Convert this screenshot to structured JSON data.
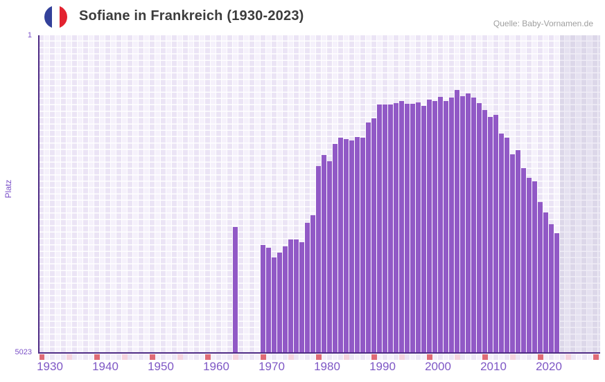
{
  "header": {
    "title": "Sofiane in Frankreich (1930-2023)",
    "flag_icon": "france-flag",
    "source": "Quelle: Baby-Vornamen.de"
  },
  "chart_data": {
    "type": "bar",
    "title": "Sofiane in Frankreich (1930-2023)",
    "ylabel": "Platz",
    "y_axis": {
      "top_label": "1",
      "bottom_label": "5023",
      "min": 1,
      "max": 5023,
      "inverted": true
    },
    "x_axis": {
      "ticks": [
        1930,
        1940,
        1950,
        1960,
        1970,
        1980,
        1990,
        2000,
        2010,
        2020
      ],
      "range_start": 1928,
      "range_end": 2029
    },
    "series": [
      {
        "name": "Platz",
        "years": [
          1963,
          1968,
          1969,
          1970,
          1971,
          1972,
          1973,
          1974,
          1975,
          1976,
          1977,
          1978,
          1979,
          1980,
          1981,
          1982,
          1983,
          1984,
          1985,
          1986,
          1987,
          1988,
          1989,
          1990,
          1991,
          1992,
          1993,
          1994,
          1995,
          1996,
          1997,
          1998,
          1999,
          2000,
          2001,
          2002,
          2003,
          2004,
          2005,
          2006,
          2007,
          2008,
          2009,
          2010,
          2011,
          2012,
          2013,
          2014,
          2015,
          2016,
          2017,
          2018,
          2019,
          2020,
          2021
        ],
        "ranks": [
          3030,
          3315,
          3360,
          3510,
          3435,
          3335,
          3225,
          3225,
          3270,
          2965,
          2845,
          2065,
          1890,
          1990,
          1715,
          1615,
          1640,
          1660,
          1605,
          1615,
          1375,
          1310,
          1090,
          1090,
          1100,
          1070,
          1045,
          1080,
          1080,
          1060,
          1115,
          1015,
          1045,
          970,
          1045,
          990,
          870,
          960,
          915,
          990,
          1070,
          1180,
          1290,
          1255,
          1550,
          1615,
          1880,
          1815,
          2100,
          2260,
          2305,
          2635,
          2800,
          2985,
          3130
        ]
      }
    ],
    "no_data_from_year": 2022,
    "timeline_strip": {
      "red_years": [
        1928,
        1938,
        1948,
        1958,
        1968,
        1978,
        1988,
        1998,
        2008,
        2018,
        2028
      ],
      "pink_years": [
        1933,
        1943,
        1953,
        1963,
        1973,
        1983,
        1993,
        2003,
        2013,
        2023
      ]
    },
    "colors": {
      "bar": "#9159c6",
      "axis_line": "#4e2b85",
      "axis_text": "#7b50c8",
      "plot_cell_a": "#ebe4f5",
      "plot_cell_b": "#f5f1fb",
      "shade_cell_a": "#dcd7e9",
      "shade_cell_b": "#e5e1f0",
      "mark_red": "#df6a76",
      "mark_pink": "#f5d3de",
      "title_text": "#3c3c3c",
      "source_text": "#9e9e9e",
      "flag_blue": "#33419a",
      "flag_red": "#e32330"
    },
    "legend": null,
    "grid": true
  }
}
